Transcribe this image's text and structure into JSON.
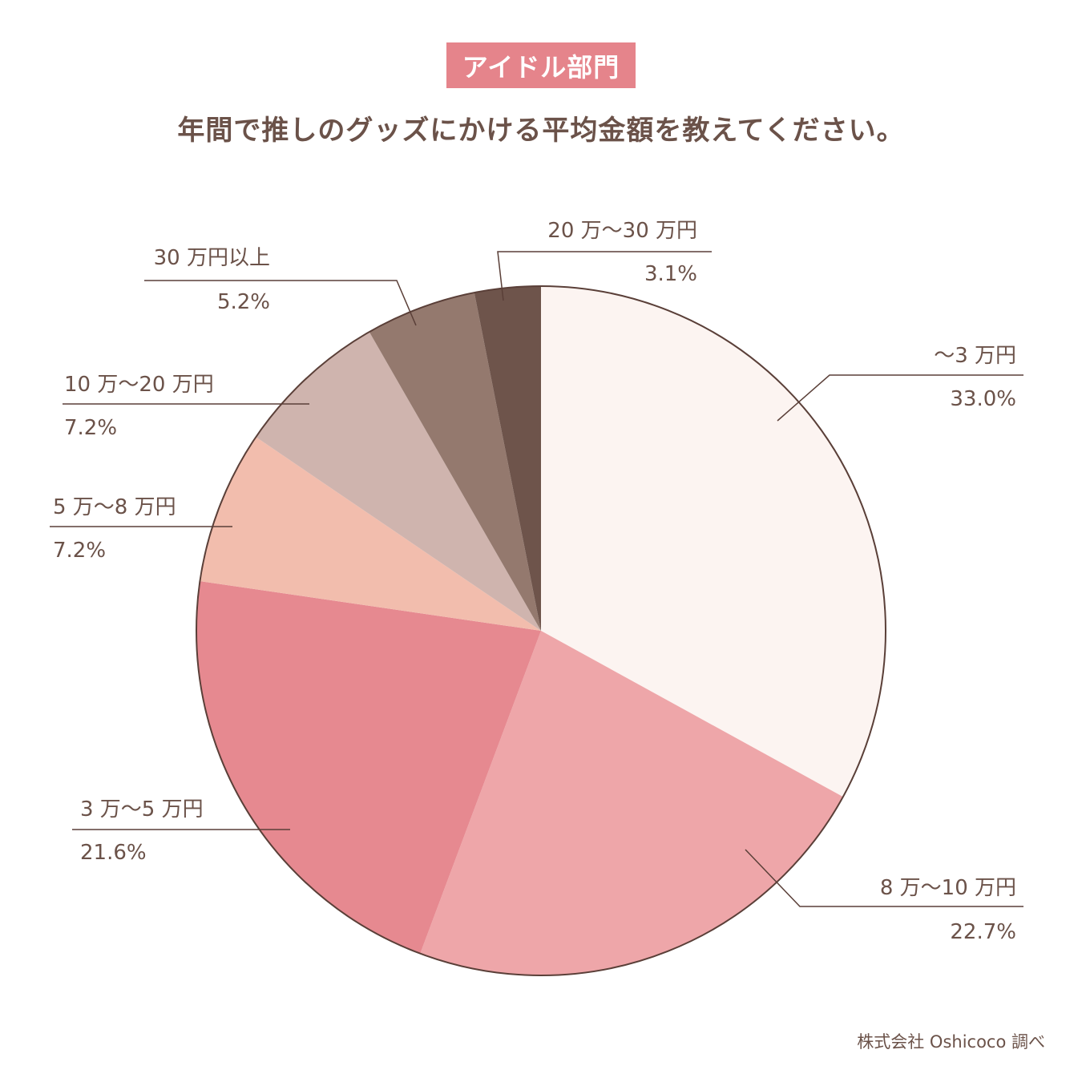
{
  "header": {
    "category_badge": "アイドル部門",
    "question": "年間で推しのグッズにかける平均金額を教えてください。"
  },
  "footer": {
    "source": "株式会社 Oshicoco 調べ"
  },
  "chart_data": {
    "type": "pie",
    "title": "",
    "start": "12 o'clock",
    "direction": "clockwise",
    "slices": [
      {
        "label": "〜3 万円",
        "value": 33.0,
        "value_label": "33.0%",
        "color": "#fcf4f1"
      },
      {
        "label": "8 万〜10 万円",
        "value": 22.7,
        "value_label": "22.7%",
        "color": "#eea6a9"
      },
      {
        "label": "3 万〜5 万円",
        "value": 21.6,
        "value_label": "21.6%",
        "color": "#e68990"
      },
      {
        "label": "5 万〜8 万円",
        "value": 7.2,
        "value_label": "7.2%",
        "color": "#f2bdad"
      },
      {
        "label": "10 万〜20 万円",
        "value": 7.2,
        "value_label": "7.2%",
        "color": "#cfb4ae"
      },
      {
        "label": "30 万円以上",
        "value": 5.2,
        "value_label": "5.2%",
        "color": "#94796e"
      },
      {
        "label": "20 万〜30 万円",
        "value": 3.1,
        "value_label": "3.1%",
        "color": "#6e544b"
      }
    ],
    "outline_color": "#5a3f38",
    "label_color": "#6b5249"
  }
}
